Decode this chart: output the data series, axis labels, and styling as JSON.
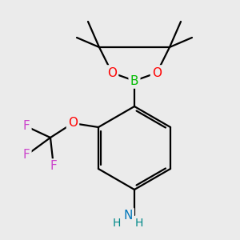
{
  "background_color": "#ebebeb",
  "bond_color": "#000000",
  "atom_colors": {
    "B": "#00bb00",
    "O": "#ff0000",
    "N": "#0077bb",
    "F": "#cc44cc",
    "C": "#000000"
  },
  "bond_lw": 1.6,
  "font_size": 10
}
